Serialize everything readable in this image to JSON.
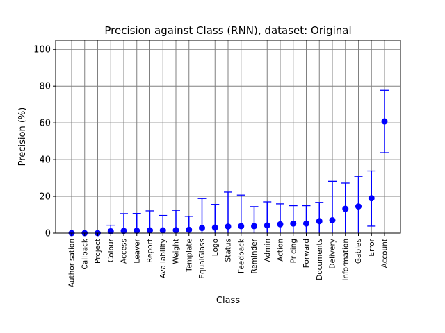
{
  "chart_data": {
    "type": "scatter",
    "title": "Precision against Class (RNN), dataset: Original",
    "xlabel": "Class",
    "ylabel": "Precision (%)",
    "ylim": [
      0,
      105
    ],
    "yticks": [
      0,
      20,
      40,
      60,
      80,
      100
    ],
    "grid": true,
    "marker_color": "#0000ff",
    "grid_color": "#808080",
    "categories": [
      "Authorisation",
      "Callback",
      "Project",
      "Colour",
      "Access",
      "Leaver",
      "Report",
      "Availability",
      "Weight",
      "Template",
      "EqualGlass",
      "Logo",
      "Status",
      "Feedback",
      "Reminder",
      "Admin",
      "Action",
      "Pricing",
      "Forward",
      "Documents",
      "Delivery",
      "Information",
      "Gables",
      "Error",
      "Account"
    ],
    "values": [
      0,
      0,
      0,
      1,
      1.2,
      1.3,
      1.5,
      1.5,
      1.6,
      1.8,
      2.8,
      3.0,
      3.6,
      3.8,
      3.8,
      4.2,
      4.8,
      5.2,
      5.2,
      6.5,
      7.0,
      13.2,
      14.5,
      19.0,
      60.8
    ],
    "err_low": [
      0,
      0,
      0,
      0,
      0,
      0,
      0,
      0,
      0,
      0,
      0,
      0,
      0,
      0,
      0,
      0,
      0,
      0,
      0,
      0,
      0,
      0,
      0,
      3.8,
      43.8
    ],
    "err_high": [
      0,
      0,
      0,
      4.3,
      10.6,
      10.7,
      12.1,
      9.6,
      12.4,
      9.1,
      18.8,
      15.6,
      22.3,
      20.7,
      14.4,
      17.0,
      15.9,
      14.9,
      14.9,
      16.7,
      28.2,
      27.2,
      30.9,
      33.8,
      77.7
    ]
  }
}
